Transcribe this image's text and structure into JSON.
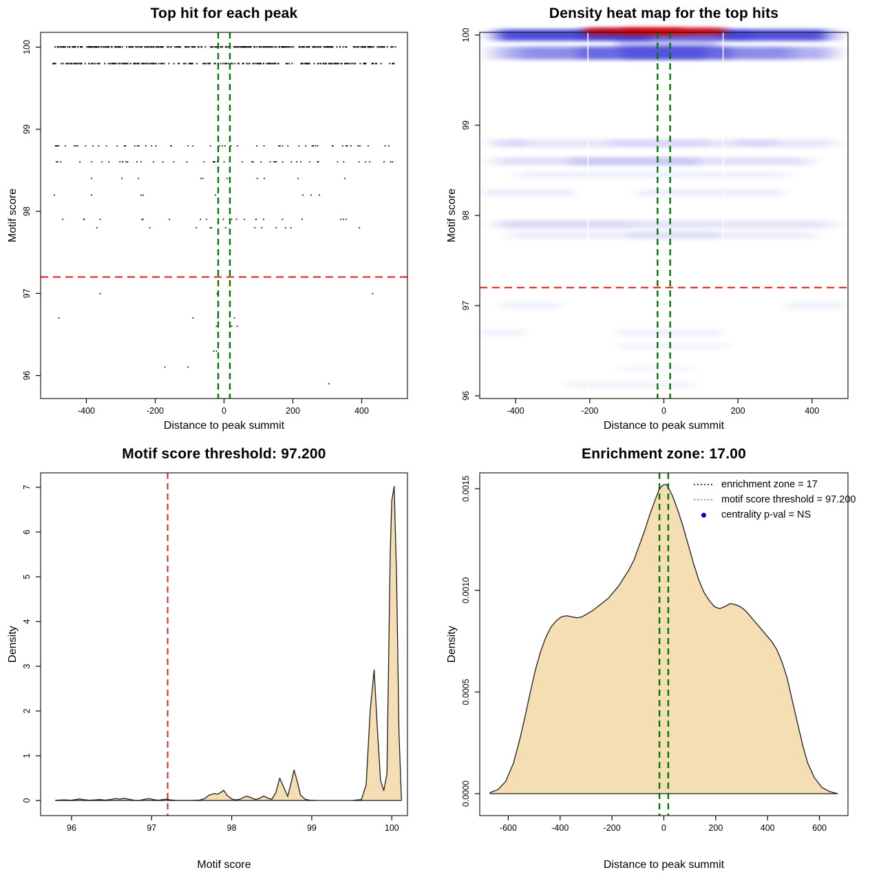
{
  "figure": {
    "background": "#ffffff",
    "layout": "2x2 R base-graphics panel"
  },
  "colors": {
    "heat_blue": "#0000cc",
    "heat_red": "#dd0000",
    "threshold_red": "#e62020",
    "zone_green": "#007300",
    "density_fill": "#f5deb3",
    "density_stroke": "#1c1c1c",
    "point_black": "#000000",
    "legend_red": "#e87070",
    "legend_blue": "#0000dd",
    "box_stroke": "#1a1a1a"
  },
  "chart_data": [
    {
      "type": "scatter",
      "panel": "top-left",
      "title": "Top hit for each peak",
      "xlabel": "Distance to peak summit",
      "ylabel": "Motif score",
      "xlim": [
        -533,
        533
      ],
      "ylim": [
        95.72,
        100.18
      ],
      "xticks": [
        -400,
        -200,
        0,
        200,
        400
      ],
      "xtick_labels": [
        "-400",
        "-200",
        "0",
        "200",
        "400"
      ],
      "yticks": [
        96,
        97,
        98,
        99,
        100
      ],
      "ytick_labels": [
        "96",
        "97",
        "98",
        "99",
        "100"
      ],
      "grid": false,
      "threshold_line": {
        "axis": "y",
        "value": 97.2,
        "pattern": "dashed",
        "color": "red"
      },
      "zone_lines": {
        "axis": "x",
        "values": [
          -17,
          17
        ],
        "pattern": "dashed",
        "color": "darkgreen"
      },
      "point_rows": [
        {
          "score": 100.0,
          "count": 330,
          "x_min": -500,
          "x_max": 500
        },
        {
          "score": 99.8,
          "count": 240,
          "x_min": -500,
          "x_max": 500
        },
        {
          "score": 98.8,
          "count": 55,
          "x_min": -490,
          "x_max": 497
        },
        {
          "score": 98.6,
          "count": 48,
          "x_min": -490,
          "x_max": 495
        },
        {
          "score": 98.4,
          "x_values": [
            -385,
            -297,
            -249,
            -67,
            -61,
            9,
            97,
            117,
            215,
            351
          ]
        },
        {
          "score": 98.2,
          "x_values": [
            -493,
            -385,
            -241,
            -235,
            -25,
            229,
            253,
            277
          ]
        },
        {
          "score": 97.9,
          "count": 22,
          "x_min": -470,
          "x_max": 460
        },
        {
          "score": 97.8,
          "count": 12,
          "x_min": -400,
          "x_max": 430
        },
        {
          "score": 97.0,
          "x_values": [
            -360,
            -20,
            432
          ]
        },
        {
          "score": 96.7,
          "x_values": [
            -480,
            -90,
            -18,
            30
          ]
        },
        {
          "score": 96.6,
          "x_values": [
            -22,
            22,
            38
          ]
        },
        {
          "score": 96.3,
          "x_values": [
            -30,
            -22
          ]
        },
        {
          "score": 96.1,
          "x_values": [
            -172,
            -105
          ]
        },
        {
          "score": 95.9,
          "x_values": [
            305
          ]
        }
      ]
    },
    {
      "type": "heatmap",
      "panel": "top-right",
      "title": "Density heat map for the top hits",
      "xlabel": "Distance to peak summit",
      "ylabel": "Motif score",
      "xlim": [
        -497,
        497
      ],
      "ylim": [
        95.97,
        100.03
      ],
      "xticks": [
        -400,
        -200,
        0,
        200,
        400
      ],
      "xtick_labels": [
        "-400",
        "-200",
        "0",
        "200",
        "400"
      ],
      "yticks": [
        96,
        97,
        98,
        99,
        100
      ],
      "ytick_labels": [
        "96",
        "97",
        "98",
        "99",
        "100"
      ],
      "threshold_line": {
        "axis": "y",
        "value": 97.2,
        "pattern": "dashed",
        "color": "red"
      },
      "zone_lines": {
        "axis": "x",
        "values": [
          -17,
          17
        ],
        "pattern": "dashed",
        "color": "darkgreen"
      },
      "bands": [
        {
          "score": 100.0,
          "thickness": 0.12,
          "segments": [
            [
              -497,
              497,
              0.5
            ],
            [
              -465,
              -20,
              0.38
            ],
            [
              140,
              445,
              0.35
            ],
            [
              -250,
              250,
              0.15
            ]
          ]
        },
        {
          "score": 99.91,
          "thickness": 0.12,
          "segments": [
            [
              -140,
              160,
              0.22
            ]
          ]
        },
        {
          "score": 99.8,
          "thickness": 0.14,
          "segments": [
            [
              -497,
              497,
              0.3
            ],
            [
              -420,
              380,
              0.2
            ],
            [
              -250,
              200,
              0.25
            ],
            [
              -120,
              120,
              0.2
            ]
          ]
        },
        {
          "score": 98.8,
          "thickness": 0.09,
          "segments": [
            [
              -490,
              497,
              0.1
            ],
            [
              -480,
              -370,
              0.05
            ],
            [
              -160,
              130,
              0.05
            ],
            [
              190,
              310,
              0.05
            ]
          ]
        },
        {
          "score": 98.6,
          "thickness": 0.09,
          "segments": [
            [
              -497,
              430,
              0.12
            ],
            [
              -270,
              110,
              0.1
            ]
          ]
        },
        {
          "score": 98.45,
          "thickness": 0.08,
          "segments": [
            [
              -430,
              360,
              0.06
            ]
          ]
        },
        {
          "score": 98.25,
          "thickness": 0.08,
          "segments": [
            [
              -497,
              -230,
              0.07
            ],
            [
              -90,
              340,
              0.07
            ]
          ]
        },
        {
          "score": 97.9,
          "thickness": 0.09,
          "segments": [
            [
              -497,
              497,
              0.1
            ],
            [
              -460,
              -60,
              0.04
            ]
          ]
        },
        {
          "score": 97.78,
          "thickness": 0.08,
          "segments": [
            [
              -450,
              440,
              0.08
            ],
            [
              -110,
              160,
              0.05
            ]
          ]
        },
        {
          "score": 97.0,
          "thickness": 0.08,
          "segments": [
            [
              -450,
              -270,
              0.05
            ],
            [
              320,
              497,
              0.05
            ]
          ]
        },
        {
          "score": 96.7,
          "thickness": 0.08,
          "segments": [
            [
              -497,
              -370,
              0.05
            ],
            [
              -140,
              170,
              0.05
            ]
          ]
        },
        {
          "score": 96.55,
          "thickness": 0.08,
          "segments": [
            [
              -130,
              190,
              0.045
            ]
          ]
        },
        {
          "score": 96.3,
          "thickness": 0.07,
          "segments": [
            [
              -130,
              90,
              0.035
            ]
          ]
        },
        {
          "score": 96.12,
          "thickness": 0.08,
          "segments": [
            [
              -280,
              100,
              0.045
            ]
          ]
        }
      ],
      "red_core": {
        "score": 100.04,
        "thickness": 0.08,
        "segments": [
          [
            -230,
            180,
            0.9
          ],
          [
            -120,
            60,
            0.55
          ]
        ]
      },
      "white_artifact_lines_x": [
        -205,
        160
      ]
    },
    {
      "type": "area",
      "panel": "bottom-left",
      "title": "Motif score threshold: 97.200",
      "xlabel": "Motif score",
      "ylabel": "Density",
      "xlim": [
        95.613,
        100.196
      ],
      "ylim": [
        -0.338,
        7.323
      ],
      "xticks": [
        96,
        97,
        98,
        99,
        100
      ],
      "xtick_labels": [
        "96",
        "97",
        "98",
        "99",
        "100"
      ],
      "yticks": [
        0,
        1,
        2,
        3,
        4,
        5,
        6,
        7
      ],
      "ytick_labels": [
        "0",
        "1",
        "2",
        "3",
        "4",
        "5",
        "6",
        "7"
      ],
      "threshold_line": {
        "axis": "x",
        "value": 97.2,
        "pattern": "dashed",
        "color": "red"
      },
      "x": [
        95.8,
        95.9,
        96.0,
        96.05,
        96.1,
        96.15,
        96.22,
        96.3,
        96.35,
        96.42,
        96.5,
        96.55,
        96.6,
        96.65,
        96.7,
        96.78,
        96.85,
        96.92,
        96.97,
        97.02,
        97.08,
        97.13,
        97.18,
        97.23,
        97.3,
        97.4,
        97.5,
        97.6,
        97.66,
        97.72,
        97.78,
        97.82,
        97.86,
        97.9,
        97.94,
        98.0,
        98.05,
        98.1,
        98.16,
        98.2,
        98.25,
        98.3,
        98.35,
        98.4,
        98.45,
        98.5,
        98.55,
        98.6,
        98.65,
        98.7,
        98.74,
        98.78,
        98.82,
        98.86,
        98.92,
        98.98,
        99.05,
        99.2,
        99.5,
        99.62,
        99.68,
        99.73,
        99.78,
        99.82,
        99.86,
        99.9,
        99.94,
        99.98,
        100.0,
        100.03,
        100.06,
        100.09,
        100.12
      ],
      "y": [
        0.004,
        0.012,
        0.006,
        0.02,
        0.035,
        0.018,
        0.006,
        0.012,
        0.022,
        0.008,
        0.025,
        0.045,
        0.028,
        0.05,
        0.032,
        0.006,
        0.004,
        0.03,
        0.042,
        0.02,
        0.006,
        0.018,
        0.03,
        0.012,
        0.004,
        0.002,
        0.002,
        0.01,
        0.04,
        0.12,
        0.155,
        0.14,
        0.175,
        0.23,
        0.12,
        0.035,
        0.012,
        0.025,
        0.08,
        0.095,
        0.055,
        0.022,
        0.05,
        0.1,
        0.055,
        0.025,
        0.17,
        0.5,
        0.3,
        0.09,
        0.38,
        0.68,
        0.42,
        0.12,
        0.025,
        0.006,
        0.002,
        0.001,
        0.001,
        0.02,
        0.35,
        2.0,
        2.92,
        1.6,
        0.45,
        0.22,
        0.6,
        5.5,
        6.7,
        7.02,
        5.0,
        1.5,
        0.05
      ]
    },
    {
      "type": "area",
      "panel": "bottom-right",
      "title": "Enrichment zone: 17.00",
      "xlabel": "Distance to peak summit",
      "ylabel": "Density",
      "xlim": [
        -710,
        710
      ],
      "ylim": [
        -0.000108,
        0.001578
      ],
      "xticks": [
        -600,
        -400,
        -200,
        0,
        200,
        400,
        600
      ],
      "xtick_labels": [
        "-600",
        "-400",
        "-200",
        "0",
        "200",
        "400",
        "600"
      ],
      "yticks": [
        0,
        0.0005,
        0.001,
        0.0015
      ],
      "ytick_labels": [
        "0.0000",
        "0.0005",
        "0.0010",
        "0.0015"
      ],
      "zone_lines": {
        "axis": "x",
        "values": [
          -17,
          17
        ],
        "pattern": "dashed",
        "color": "darkgreen"
      },
      "x": [
        -670,
        -640,
        -610,
        -580,
        -555,
        -535,
        -515,
        -495,
        -475,
        -455,
        -435,
        -415,
        -395,
        -375,
        -355,
        -335,
        -315,
        -295,
        -275,
        -255,
        -235,
        -215,
        -195,
        -175,
        -155,
        -135,
        -115,
        -95,
        -75,
        -55,
        -35,
        -20,
        -10,
        0,
        10,
        20,
        35,
        55,
        75,
        95,
        115,
        135,
        155,
        175,
        195,
        215,
        235,
        255,
        275,
        295,
        315,
        335,
        355,
        375,
        395,
        415,
        435,
        455,
        475,
        495,
        515,
        535,
        555,
        580,
        610,
        640,
        670
      ],
      "y": [
        5e-06,
        2e-05,
        6e-05,
        0.00015,
        0.00027,
        0.00038,
        0.0005,
        0.00061,
        0.0007,
        0.00077,
        0.00082,
        0.00085,
        0.00087,
        0.000875,
        0.00087,
        0.000865,
        0.00087,
        0.000885,
        0.0009,
        0.00092,
        0.00094,
        0.00096,
        0.00099,
        0.00102,
        0.00106,
        0.0011,
        0.00115,
        0.00122,
        0.00129,
        0.00137,
        0.00144,
        0.00149,
        0.00151,
        0.00152,
        0.00152,
        0.0015,
        0.00146,
        0.00139,
        0.00131,
        0.00122,
        0.00113,
        0.00105,
        0.00099,
        0.00095,
        0.00092,
        0.00091,
        0.00092,
        0.000935,
        0.00093,
        0.00092,
        0.0009,
        0.00087,
        0.00084,
        0.00081,
        0.00078,
        0.00075,
        0.00071,
        0.00065,
        0.00057,
        0.00046,
        0.00035,
        0.00024,
        0.00015,
        8e-05,
        3e-05,
        1e-05,
        0
      ],
      "legend": {
        "position": "top-right",
        "entries": [
          {
            "swatch": "green-dotted-line",
            "label": "enrichment zone = 17"
          },
          {
            "swatch": "red-dotted-line",
            "label": "motif score threshold = 97.200"
          },
          {
            "swatch": "blue-dot",
            "label": "centrality p-val = NS"
          }
        ]
      }
    }
  ]
}
